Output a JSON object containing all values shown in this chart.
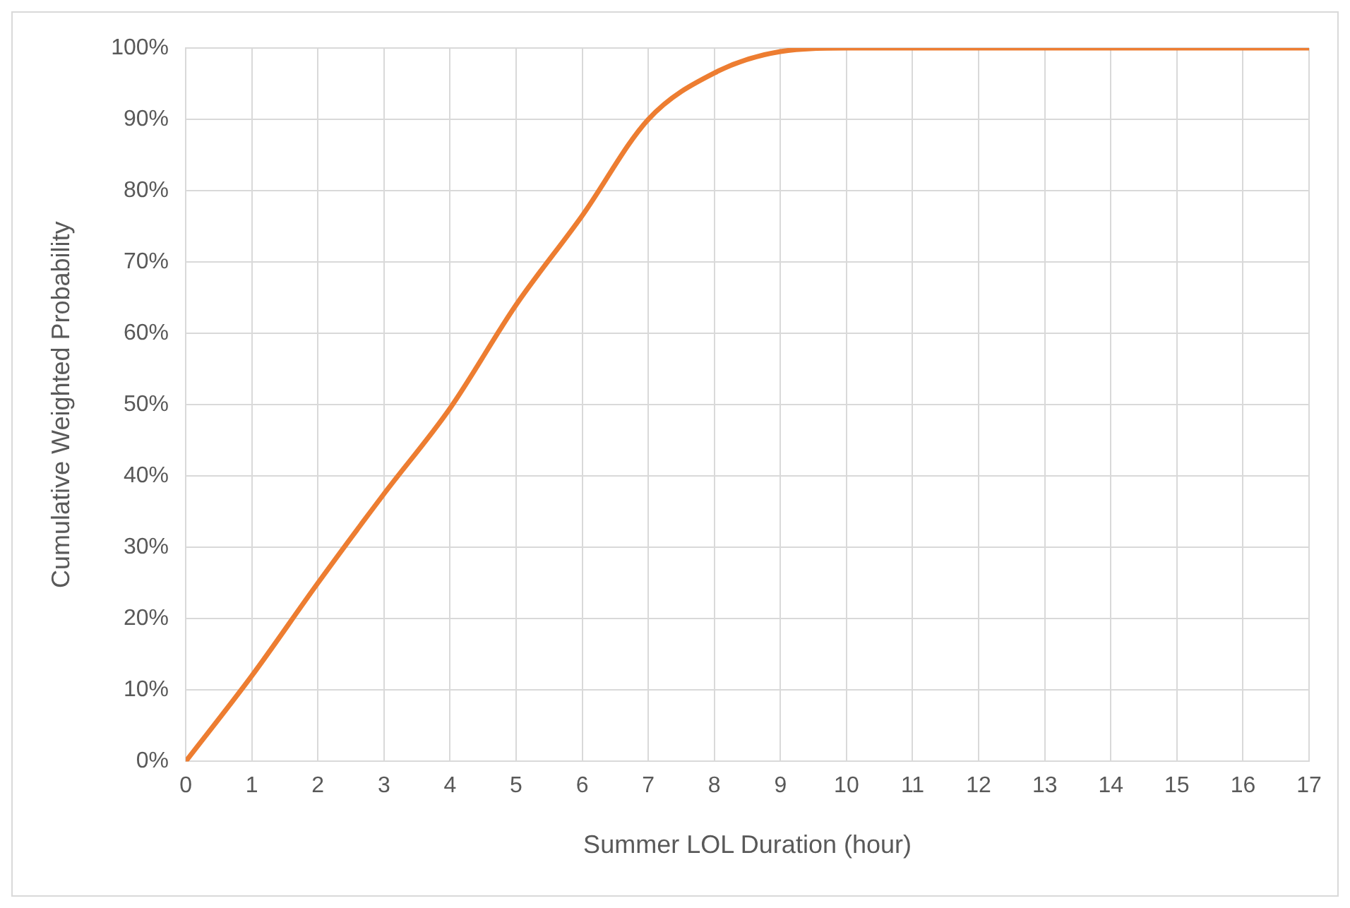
{
  "chart_data": {
    "type": "line",
    "xlabel": "Summer LOL Duration (hour)",
    "ylabel": "Cumulative Weighted Probability",
    "x": [
      0,
      1,
      2,
      3,
      4,
      5,
      6,
      7,
      8,
      9,
      10,
      11,
      12,
      13,
      14,
      15,
      16,
      17
    ],
    "series": [
      {
        "color": "#ed7d31",
        "values": [
          0,
          12,
          25,
          37.5,
          49.5,
          64,
          76.5,
          90,
          96.5,
          99.5,
          100,
          100,
          100,
          100,
          100,
          100,
          100,
          100
        ]
      }
    ],
    "xlim": [
      0,
      17
    ],
    "xticks": [
      0,
      1,
      2,
      3,
      4,
      5,
      6,
      7,
      8,
      9,
      10,
      11,
      12,
      13,
      14,
      15,
      16,
      17
    ],
    "ylim": [
      0,
      100
    ],
    "yticks": [
      {
        "value": 0,
        "label": "0%"
      },
      {
        "value": 10,
        "label": "10%"
      },
      {
        "value": 20,
        "label": "20%"
      },
      {
        "value": 30,
        "label": "30%"
      },
      {
        "value": 40,
        "label": "40%"
      },
      {
        "value": 50,
        "label": "50%"
      },
      {
        "value": 60,
        "label": "60%"
      },
      {
        "value": 70,
        "label": "70%"
      },
      {
        "value": 80,
        "label": "80%"
      },
      {
        "value": 90,
        "label": "90%"
      },
      {
        "value": 100,
        "label": "100%"
      }
    ],
    "grid": true,
    "legend": false,
    "marker": "none",
    "line_style": "solid"
  }
}
